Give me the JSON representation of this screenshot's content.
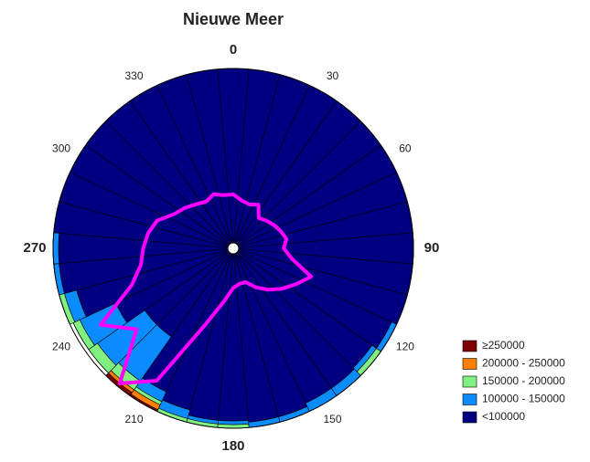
{
  "chart_data": {
    "type": "polar_bar",
    "title": "Nieuwe Meer",
    "directions": [
      0,
      10,
      20,
      30,
      40,
      50,
      60,
      70,
      80,
      90,
      100,
      110,
      120,
      130,
      140,
      150,
      160,
      170,
      180,
      190,
      200,
      210,
      220,
      230,
      240,
      250,
      260,
      270,
      280,
      290,
      300,
      310,
      320,
      330,
      340,
      350
    ],
    "angle_ticks": [
      0,
      30,
      60,
      90,
      120,
      150,
      180,
      210,
      240,
      270,
      300,
      330
    ],
    "rlim": [
      0,
      1
    ],
    "series": [
      {
        "name": "<100000",
        "color": "#000080",
        "values": [
          1,
          1,
          1,
          1,
          1,
          1,
          1,
          1,
          1,
          1,
          1,
          1,
          0.97,
          0.94,
          0.95,
          0.95,
          0.97,
          0.97,
          0.96,
          0.96,
          0.93,
          0.88,
          0.6,
          0.6,
          0.72,
          0.9,
          0.97,
          0.97,
          1,
          1,
          1,
          1,
          1,
          1,
          1,
          1
        ]
      },
      {
        "name": "100000 - 150000",
        "color": "#0a8cff",
        "values": [
          0,
          0,
          0,
          0,
          0,
          0,
          0,
          0,
          0,
          0,
          0,
          0,
          0.03,
          0.03,
          0.05,
          0.05,
          0.03,
          0.03,
          0.02,
          0.02,
          0.05,
          0.06,
          0.3,
          0.32,
          0.22,
          0.07,
          0.03,
          0.03,
          0,
          0,
          0,
          0,
          0,
          0,
          0,
          0
        ]
      },
      {
        "name": "150000 - 200000",
        "color": "#80f080",
        "values": [
          0,
          0,
          0,
          0,
          0,
          0,
          0,
          0,
          0,
          0,
          0,
          0,
          0,
          0.03,
          0,
          0,
          0,
          0,
          0.02,
          0.02,
          0.02,
          0.02,
          0.06,
          0.06,
          0.04,
          0.03,
          0,
          0,
          0,
          0,
          0,
          0,
          0,
          0,
          0,
          0
        ]
      },
      {
        "name": "200000 - 250000",
        "color": "#ff7f00",
        "values": [
          0,
          0,
          0,
          0,
          0,
          0,
          0,
          0,
          0,
          0,
          0,
          0,
          0,
          0,
          0,
          0,
          0,
          0,
          0,
          0,
          0,
          0.03,
          0.02,
          0,
          0,
          0,
          0,
          0,
          0,
          0,
          0,
          0,
          0,
          0,
          0,
          0
        ]
      },
      {
        "name": "≥250000",
        "color": "#7f0000",
        "values": [
          0,
          0,
          0,
          0,
          0,
          0,
          0,
          0,
          0,
          0,
          0,
          0,
          0,
          0,
          0,
          0,
          0,
          0,
          0,
          0,
          0,
          0.01,
          0.02,
          0,
          0,
          0,
          0,
          0,
          0,
          0,
          0,
          0,
          0,
          0,
          0,
          0
        ]
      }
    ],
    "line": {
      "color": "#ff00ff",
      "values": [
        0.3,
        0.27,
        0.26,
        0.28,
        0.22,
        0.24,
        0.26,
        0.28,
        0.3,
        0.28,
        0.33,
        0.46,
        0.4,
        0.35,
        0.3,
        0.25,
        0.2,
        0.2,
        0.22,
        0.3,
        0.45,
        0.85,
        0.98,
        0.7,
        0.85,
        0.6,
        0.52,
        0.5,
        0.48,
        0.45,
        0.38,
        0.35,
        0.32,
        0.3,
        0.32,
        0.3
      ]
    }
  }
}
